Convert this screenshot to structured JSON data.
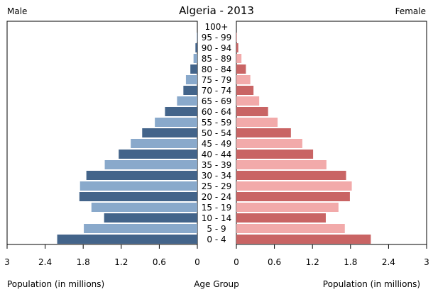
{
  "chart_data": {
    "type": "bar",
    "title": "Algeria - 2013",
    "left_label": "Male",
    "right_label": "Female",
    "x_unit_label": "Population (in millions)",
    "center_axis_label": "Age Group",
    "xlim": [
      0,
      3
    ],
    "ticks": [
      "3",
      "2.4",
      "1.8",
      "1.2",
      "0.6",
      "0"
    ],
    "tick_values": [
      3,
      2.4,
      1.8,
      1.2,
      0.6,
      0
    ],
    "categories": [
      "0 - 4",
      "5 - 9",
      "10 - 14",
      "15 - 19",
      "20 - 24",
      "25 - 29",
      "30 - 34",
      "35 - 39",
      "40 - 44",
      "45 - 49",
      "50 - 54",
      "55 - 59",
      "60 - 64",
      "65 - 69",
      "70 - 74",
      "75 - 79",
      "80 - 84",
      "85 - 89",
      "90 - 94",
      "95 - 99",
      "100+"
    ],
    "series": [
      {
        "name": "Male",
        "values": [
          2.21,
          1.79,
          1.47,
          1.67,
          1.86,
          1.85,
          1.75,
          1.46,
          1.24,
          1.05,
          0.87,
          0.67,
          0.51,
          0.32,
          0.22,
          0.18,
          0.11,
          0.06,
          0.03,
          0.01,
          0.0
        ],
        "colors": [
          "#43648a",
          "#89a9cb"
        ]
      },
      {
        "name": "Female",
        "values": [
          2.12,
          1.71,
          1.41,
          1.61,
          1.79,
          1.82,
          1.73,
          1.42,
          1.21,
          1.04,
          0.86,
          0.65,
          0.5,
          0.36,
          0.27,
          0.22,
          0.15,
          0.08,
          0.03,
          0.01,
          0.0
        ],
        "colors": [
          "#c96464",
          "#f2aaaa"
        ]
      }
    ]
  }
}
